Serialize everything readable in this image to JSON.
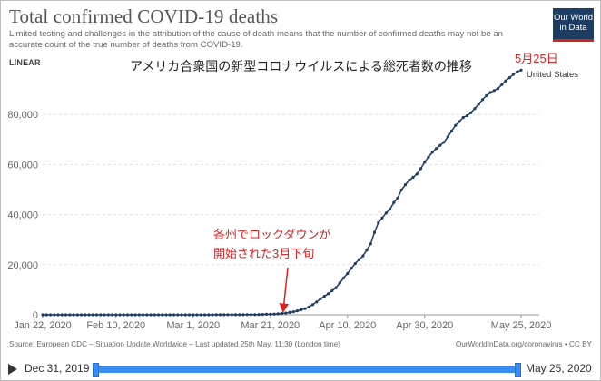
{
  "header": {
    "title": "Total confirmed COVID-19 deaths",
    "subtitle": "Limited testing and challenges in the attribution of the cause of death means that the number of confirmed deaths may not be an accurate count of the true number of deaths from COVID-19.",
    "logo_line1": "Our World",
    "logo_line2": "in Data",
    "scale_label": "LINEAR"
  },
  "annotations": {
    "japanese_title": "アメリカ合衆国の新型コロナウイルスによる総死者数の推移",
    "date_note": "5月25日",
    "lockdown_line1": "各州でロックダウンが",
    "lockdown_line2": "開始された3月下旬"
  },
  "footer": {
    "source": "Source: European CDC – Situation Update Worldwide – Last updated 25th May, 11:30 (London time)",
    "link": "OurWorldInData.org/coronavirus • CC BY"
  },
  "timeline": {
    "start_label": "Dec 31, 2019",
    "end_label": "May 25, 2020",
    "selection": [
      0.0,
      1.0
    ]
  },
  "colors": {
    "series": "#1f3b63",
    "annotation": "#dd2222",
    "grid": "#dddddd",
    "timeline_accent": "#3c8df0"
  },
  "chart_data": {
    "type": "line",
    "xlabel": "",
    "ylabel": "",
    "ylim": [
      0,
      100000
    ],
    "yticks": [
      0,
      20000,
      40000,
      60000,
      80000
    ],
    "ytick_labels": [
      "0",
      "20,000",
      "40,000",
      "60,000",
      "80,000"
    ],
    "xtick_labels": [
      "Jan 22, 2020",
      "Feb 10, 2020",
      "Mar 1, 2020",
      "Mar 21, 2020",
      "Apr 10, 2020",
      "Apr 30, 2020",
      "May 25, 2020"
    ],
    "xtick_dates": [
      "2020-01-22",
      "2020-02-10",
      "2020-03-01",
      "2020-03-21",
      "2020-04-10",
      "2020-04-30",
      "2020-05-25"
    ],
    "xlim": [
      "2020-01-22",
      "2020-05-25"
    ],
    "grid": true,
    "series": [
      {
        "name": "United States",
        "x": [
          "2020-01-22",
          "2020-01-23",
          "2020-01-24",
          "2020-01-25",
          "2020-01-26",
          "2020-01-27",
          "2020-01-28",
          "2020-01-29",
          "2020-01-30",
          "2020-01-31",
          "2020-02-01",
          "2020-02-02",
          "2020-02-03",
          "2020-02-04",
          "2020-02-05",
          "2020-02-06",
          "2020-02-07",
          "2020-02-08",
          "2020-02-09",
          "2020-02-10",
          "2020-02-11",
          "2020-02-12",
          "2020-02-13",
          "2020-02-14",
          "2020-02-15",
          "2020-02-16",
          "2020-02-17",
          "2020-02-18",
          "2020-02-19",
          "2020-02-20",
          "2020-02-21",
          "2020-02-22",
          "2020-02-23",
          "2020-02-24",
          "2020-02-25",
          "2020-02-26",
          "2020-02-27",
          "2020-02-28",
          "2020-02-29",
          "2020-03-01",
          "2020-03-02",
          "2020-03-03",
          "2020-03-04",
          "2020-03-05",
          "2020-03-06",
          "2020-03-07",
          "2020-03-08",
          "2020-03-09",
          "2020-03-10",
          "2020-03-11",
          "2020-03-12",
          "2020-03-13",
          "2020-03-14",
          "2020-03-15",
          "2020-03-16",
          "2020-03-17",
          "2020-03-18",
          "2020-03-19",
          "2020-03-20",
          "2020-03-21",
          "2020-03-22",
          "2020-03-23",
          "2020-03-24",
          "2020-03-25",
          "2020-03-26",
          "2020-03-27",
          "2020-03-28",
          "2020-03-29",
          "2020-03-30",
          "2020-03-31",
          "2020-04-01",
          "2020-04-02",
          "2020-04-03",
          "2020-04-04",
          "2020-04-05",
          "2020-04-06",
          "2020-04-07",
          "2020-04-08",
          "2020-04-09",
          "2020-04-10",
          "2020-04-11",
          "2020-04-12",
          "2020-04-13",
          "2020-04-14",
          "2020-04-15",
          "2020-04-16",
          "2020-04-17",
          "2020-04-18",
          "2020-04-19",
          "2020-04-20",
          "2020-04-21",
          "2020-04-22",
          "2020-04-23",
          "2020-04-24",
          "2020-04-25",
          "2020-04-26",
          "2020-04-27",
          "2020-04-28",
          "2020-04-29",
          "2020-04-30",
          "2020-05-01",
          "2020-05-02",
          "2020-05-03",
          "2020-05-04",
          "2020-05-05",
          "2020-05-06",
          "2020-05-07",
          "2020-05-08",
          "2020-05-09",
          "2020-05-10",
          "2020-05-11",
          "2020-05-12",
          "2020-05-13",
          "2020-05-14",
          "2020-05-15",
          "2020-05-16",
          "2020-05-17",
          "2020-05-18",
          "2020-05-19",
          "2020-05-20",
          "2020-05-21",
          "2020-05-22",
          "2020-05-23",
          "2020-05-24",
          "2020-05-25"
        ],
        "values": [
          0,
          0,
          0,
          0,
          0,
          0,
          0,
          0,
          0,
          0,
          0,
          0,
          0,
          0,
          0,
          0,
          0,
          0,
          0,
          0,
          0,
          0,
          0,
          0,
          0,
          0,
          0,
          0,
          0,
          0,
          0,
          0,
          0,
          0,
          0,
          0,
          0,
          0,
          1,
          1,
          6,
          9,
          11,
          12,
          15,
          19,
          22,
          26,
          28,
          31,
          36,
          40,
          47,
          57,
          68,
          86,
          109,
          150,
          206,
          255,
          301,
          414,
          555,
          706,
          942,
          1209,
          1581,
          2026,
          2467,
          3170,
          4076,
          5151,
          6394,
          7401,
          8407,
          9619,
          10783,
          12722,
          14695,
          16478,
          18586,
          20463,
          22020,
          23529,
          25832,
          28325,
          32916,
          36773,
          38664,
          40661,
          42094,
          44845,
          46622,
          49845,
          51949,
          53755,
          54881,
          56219,
          58355,
          60967,
          62996,
          64943,
          66369,
          67682,
          68922,
          71064,
          73455,
          75662,
          77180,
          78794,
          79526,
          80682,
          82356,
          84119,
          85898,
          87530,
          88754,
          89562,
          90347,
          91921,
          93439,
          94702,
          96007,
          97048,
          97720
        ]
      }
    ]
  }
}
